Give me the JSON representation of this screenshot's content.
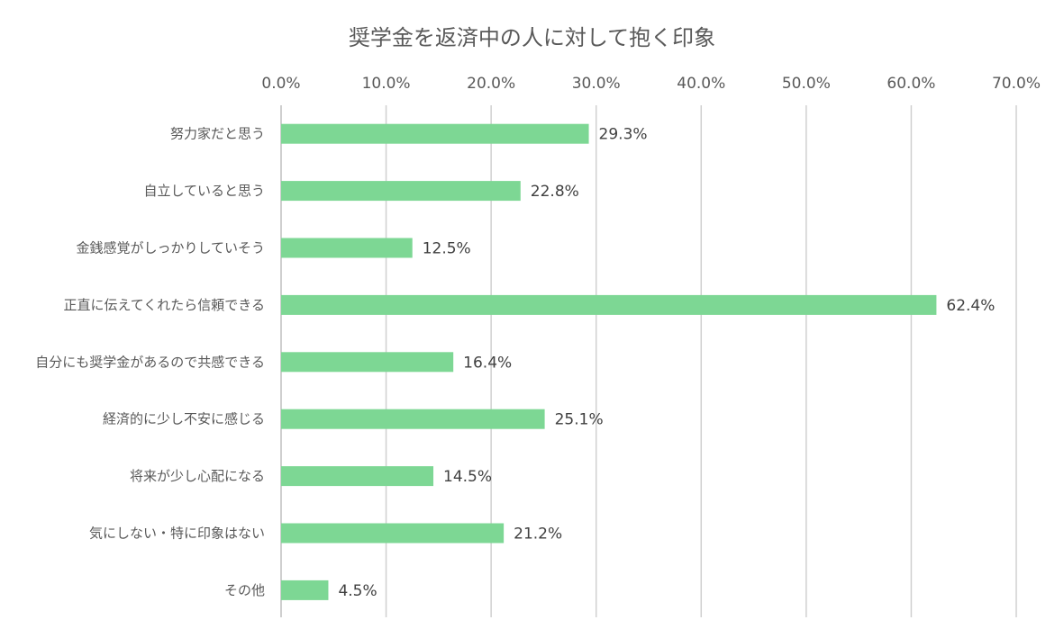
{
  "chart_data": {
    "type": "bar",
    "orientation": "horizontal",
    "title": "奨学金を返済中の人に対して抱く印象",
    "xlabel": "",
    "ylabel": "",
    "xlim": [
      0,
      70
    ],
    "ticks": [
      "0.0%",
      "10.0%",
      "20.0%",
      "30.0%",
      "40.0%",
      "50.0%",
      "60.0%",
      "70.0%"
    ],
    "tick_values": [
      0,
      10,
      20,
      30,
      40,
      50,
      60,
      70
    ],
    "grid": true,
    "bar_color": "#7DD794",
    "categories": [
      "努力家だと思う",
      "自立していると思う",
      "金銭感覚がしっかりしていそう",
      "正直に伝えてくれたら信頼できる",
      "自分にも奨学金があるので共感できる",
      "経済的に少し不安に感じる",
      "将来が少し心配になる",
      "気にしない・特に印象はない",
      "その他"
    ],
    "values": [
      29.3,
      22.8,
      12.5,
      62.4,
      16.4,
      25.1,
      14.5,
      21.2,
      4.5
    ],
    "value_labels": [
      "29.3%",
      "22.8%",
      "12.5%",
      "62.4%",
      "16.4%",
      "25.1%",
      "14.5%",
      "21.2%",
      "4.5%"
    ]
  }
}
